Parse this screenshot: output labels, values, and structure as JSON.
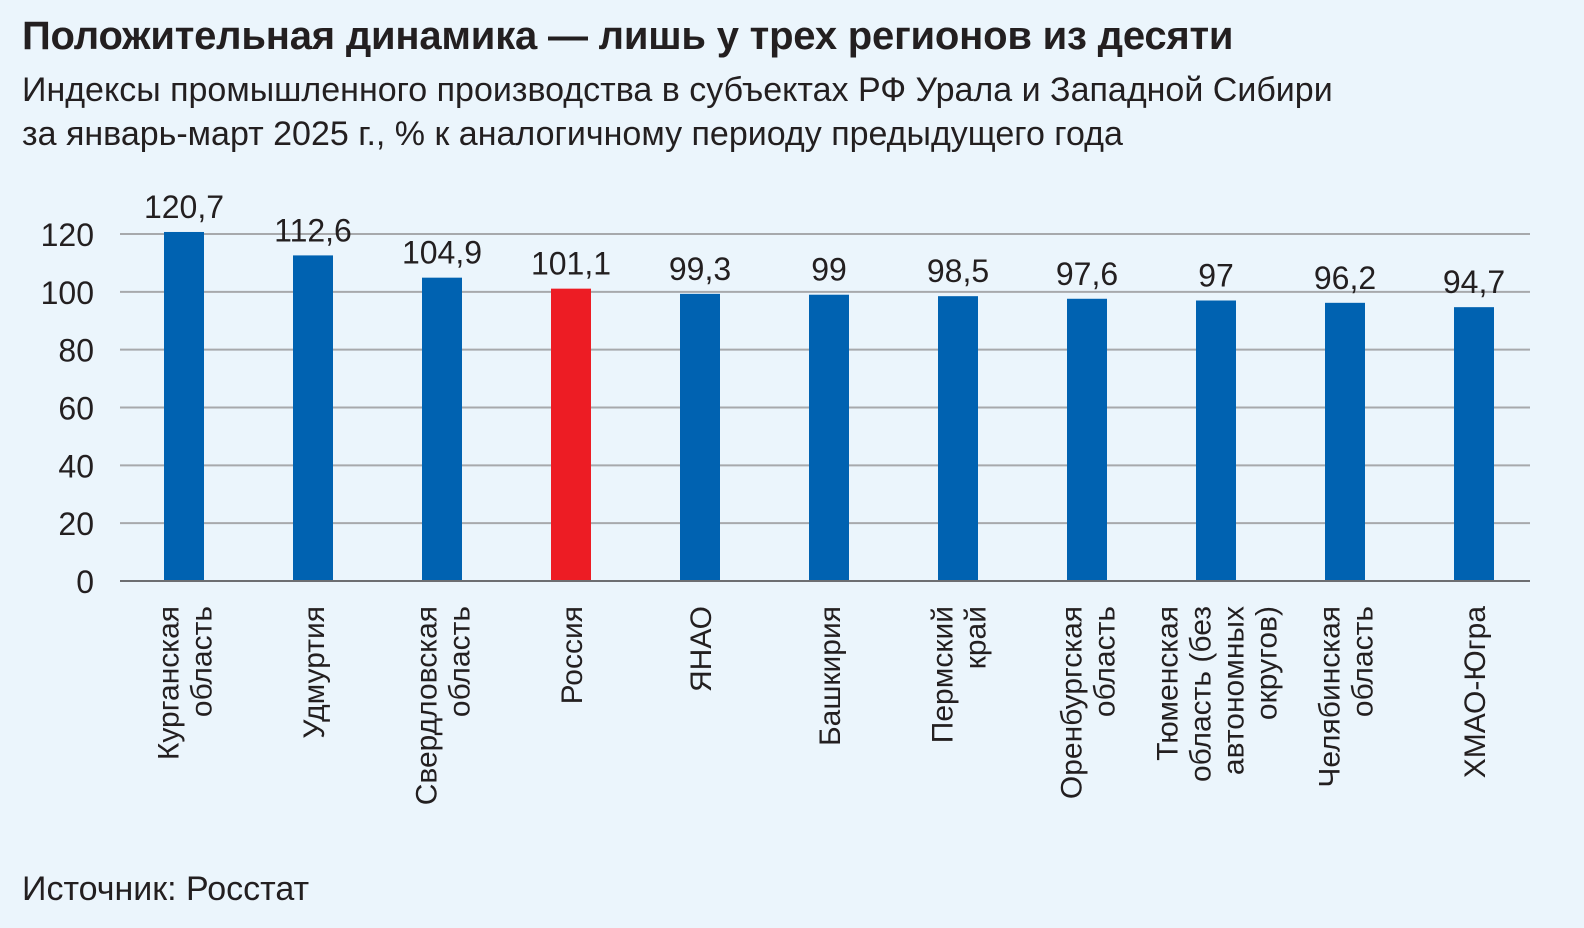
{
  "title": "Положительная динамика — лишь у трех регионов из десяти",
  "subtitle_line1": "Индексы промышленного производства в субъектах РФ Урала и Западной Сибири",
  "subtitle_line2": "за январь-март 2025 г., % к аналогичному периоду предыдущего года",
  "source": "Источник: Росстат",
  "colors": {
    "bar": "#0062B1",
    "highlight": "#ED1C24",
    "grid": "#A7A9AC",
    "axis": "#6D6E71",
    "text": "#231F20"
  },
  "chart_data": {
    "type": "bar",
    "orientation": "vertical",
    "categories": [
      [
        "Курганская",
        "область"
      ],
      [
        "Удмуртия"
      ],
      [
        "Свердловская",
        "область"
      ],
      [
        "Россия"
      ],
      [
        "ЯНАО"
      ],
      [
        "Башкирия"
      ],
      [
        "Пермский",
        "край"
      ],
      [
        "Оренбургская",
        "область"
      ],
      [
        "Тюменская",
        "область (без",
        "автономных",
        "округов)"
      ],
      [
        "Челябинская",
        "область"
      ],
      [
        "ХМАО-Югра"
      ]
    ],
    "values": [
      120.7,
      112.6,
      104.9,
      101.1,
      99.3,
      99,
      98.5,
      97.6,
      97,
      96.2,
      94.7
    ],
    "value_labels": [
      "120,7",
      "112,6",
      "104,9",
      "101,1",
      "99,3",
      "99",
      "98,5",
      "97,6",
      "97",
      "96,2",
      "94,7"
    ],
    "highlight_index": 3,
    "yticks": [
      0,
      20,
      40,
      60,
      80,
      100,
      120
    ],
    "ylim": [
      0,
      120
    ],
    "grid": true,
    "legend": "none",
    "xlabel": "",
    "ylabel": ""
  }
}
